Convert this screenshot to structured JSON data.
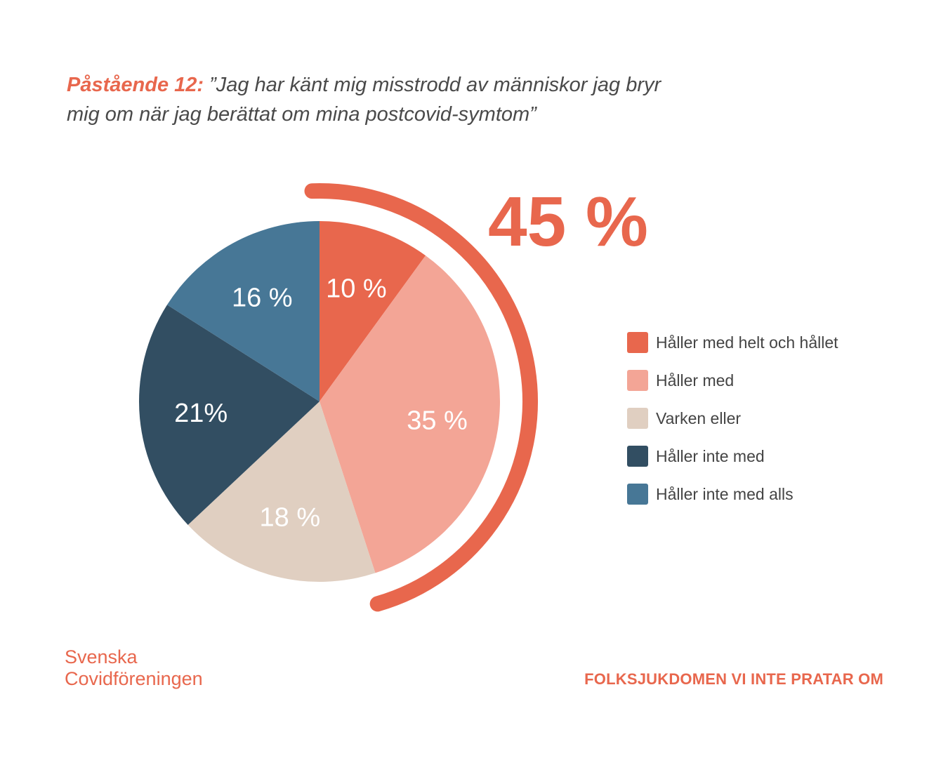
{
  "title": {
    "prefix": "Påstående 12:",
    "text": "”Jag har känt mig misstrodd av människor jag bryr mig om när jag berättat om mina postcovid-symtom”"
  },
  "highlight": {
    "label": "45 %",
    "value": 45
  },
  "chart_data": {
    "type": "pie",
    "title": "Påstående 12: ”Jag har känt mig misstrodd av människor jag bryr mig om när jag berättat om mina postcovid-symtom”",
    "start_angle": "12 o'clock, clockwise",
    "legend_position": "right",
    "slices": [
      {
        "name": "Håller med helt och hållet",
        "value": 10,
        "label": "10 %",
        "color": "#e8674d"
      },
      {
        "name": "Håller med",
        "value": 35,
        "label": "35 %",
        "color": "#f3a596"
      },
      {
        "name": "Varken eller",
        "value": 18,
        "label": "18 %",
        "color": "#e0cfc1"
      },
      {
        "name": "Håller inte med",
        "value": 21,
        "label": "21%",
        "color": "#324e62"
      },
      {
        "name": "Håller inte med alls",
        "value": 16,
        "label": "16 %",
        "color": "#477796"
      }
    ]
  },
  "footer": {
    "brand_line1": "Svenska",
    "brand_line2": "Covidföreningen",
    "tagline": "FOLKSJUKDOMEN VI INTE PRATAR OM"
  },
  "colors": {
    "accent": "#e8674d"
  }
}
